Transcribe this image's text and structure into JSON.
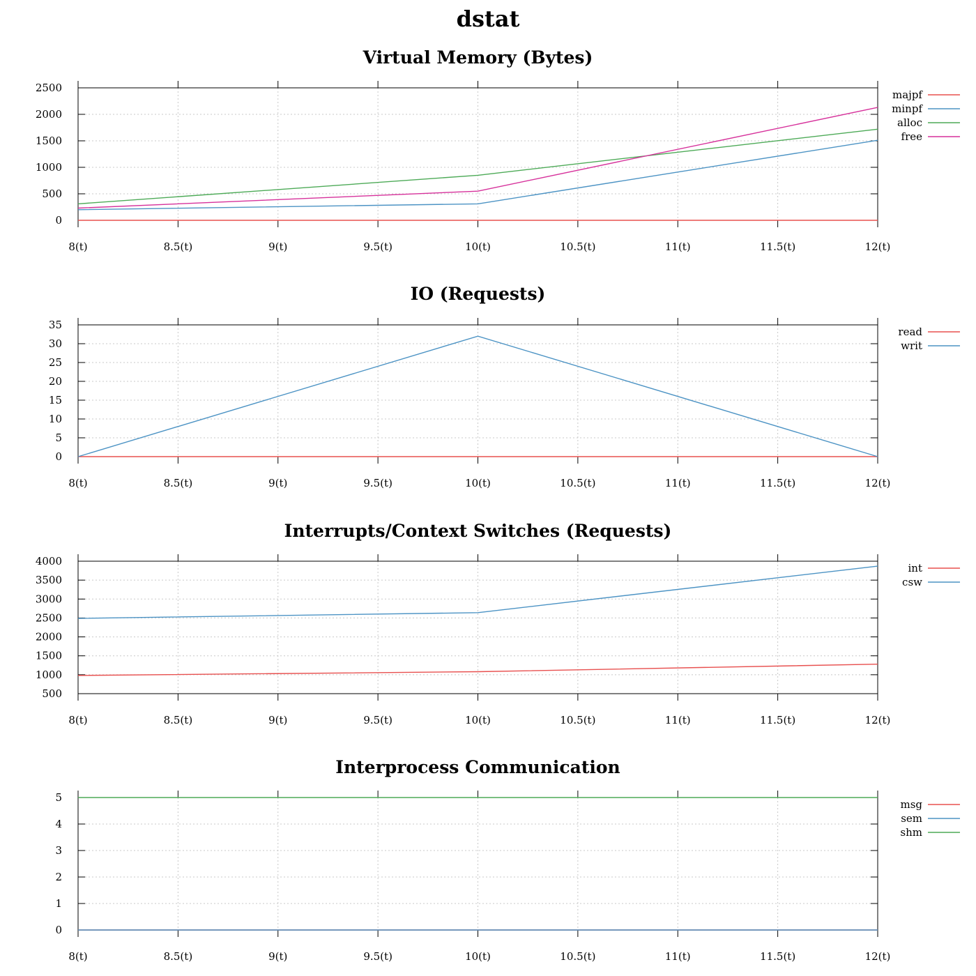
{
  "title": "dstat",
  "colors": {
    "red": "#e8504f",
    "blue": "#4c93c4",
    "green": "#4daa57",
    "magenta": "#d6319b"
  },
  "chart_data": [
    {
      "type": "line",
      "title": "Virtual Memory (Bytes)",
      "x": [
        8,
        8.5,
        9,
        9.5,
        10,
        10.5,
        11,
        11.5,
        12
      ],
      "xticks": [
        "8(t)",
        "8.5(t)",
        "9(t)",
        "9.5(t)",
        "10(t)",
        "10.5(t)",
        "11(t)",
        "11.5(t)",
        "12(t)"
      ],
      "ylim": [
        0,
        2500
      ],
      "yticks": [
        0,
        500,
        1000,
        1500,
        2000,
        2500
      ],
      "grid": true,
      "legend_position": "right",
      "series": [
        {
          "name": "majpf",
          "color": "#e8504f",
          "x": [
            8,
            12
          ],
          "values": [
            0,
            0
          ]
        },
        {
          "name": "minpf",
          "color": "#4c93c4",
          "x": [
            8,
            10,
            12
          ],
          "values": [
            200,
            310,
            1510
          ]
        },
        {
          "name": "alloc",
          "color": "#4daa57",
          "x": [
            8,
            10,
            12
          ],
          "values": [
            310,
            850,
            1720
          ]
        },
        {
          "name": "free",
          "color": "#d6319b",
          "x": [
            8,
            10,
            12
          ],
          "values": [
            230,
            550,
            2130
          ]
        }
      ]
    },
    {
      "type": "line",
      "title": "IO (Requests)",
      "x": [
        8,
        8.5,
        9,
        9.5,
        10,
        10.5,
        11,
        11.5,
        12
      ],
      "xticks": [
        "8(t)",
        "8.5(t)",
        "9(t)",
        "9.5(t)",
        "10(t)",
        "10.5(t)",
        "11(t)",
        "11.5(t)",
        "12(t)"
      ],
      "ylim": [
        0,
        35
      ],
      "yticks": [
        0,
        5,
        10,
        15,
        20,
        25,
        30,
        35
      ],
      "grid": true,
      "legend_position": "right",
      "series": [
        {
          "name": "read",
          "color": "#e8504f",
          "x": [
            8,
            12
          ],
          "values": [
            0,
            0
          ]
        },
        {
          "name": "writ",
          "color": "#4c93c4",
          "x": [
            8,
            10,
            12
          ],
          "values": [
            0,
            32,
            0
          ]
        }
      ]
    },
    {
      "type": "line",
      "title": "Interrupts/Context Switches (Requests)",
      "x": [
        8,
        8.5,
        9,
        9.5,
        10,
        10.5,
        11,
        11.5,
        12
      ],
      "xticks": [
        "8(t)",
        "8.5(t)",
        "9(t)",
        "9.5(t)",
        "10(t)",
        "10.5(t)",
        "11(t)",
        "11.5(t)",
        "12(t)"
      ],
      "ylim": [
        500,
        4000
      ],
      "yticks": [
        500,
        1000,
        1500,
        2000,
        2500,
        3000,
        3500,
        4000
      ],
      "grid": true,
      "legend_position": "right",
      "series": [
        {
          "name": "int",
          "color": "#e8504f",
          "x": [
            8,
            10,
            12
          ],
          "values": [
            980,
            1080,
            1280
          ]
        },
        {
          "name": "csw",
          "color": "#4c93c4",
          "x": [
            8,
            10,
            12
          ],
          "values": [
            2490,
            2640,
            3870
          ]
        }
      ]
    },
    {
      "type": "line",
      "title": "Interprocess Communication",
      "x": [
        8,
        8.5,
        9,
        9.5,
        10,
        10.5,
        11,
        11.5,
        12
      ],
      "xticks": [
        "8(t)",
        "8.5(t)",
        "9(t)",
        "9.5(t)",
        "10(t)",
        "10.5(t)",
        "11(t)",
        "11.5(t)",
        "12(t)"
      ],
      "ylim": [
        0,
        5
      ],
      "yticks": [
        0,
        1,
        2,
        3,
        4,
        5
      ],
      "grid": true,
      "legend_position": "right",
      "series": [
        {
          "name": "msg",
          "color": "#e8504f",
          "x": [
            8,
            12
          ],
          "values": [
            0,
            0
          ]
        },
        {
          "name": "sem",
          "color": "#4c93c4",
          "x": [
            8,
            12
          ],
          "values": [
            0,
            0
          ]
        },
        {
          "name": "shm",
          "color": "#4daa57",
          "x": [
            8,
            12
          ],
          "values": [
            5,
            5
          ]
        }
      ]
    }
  ]
}
